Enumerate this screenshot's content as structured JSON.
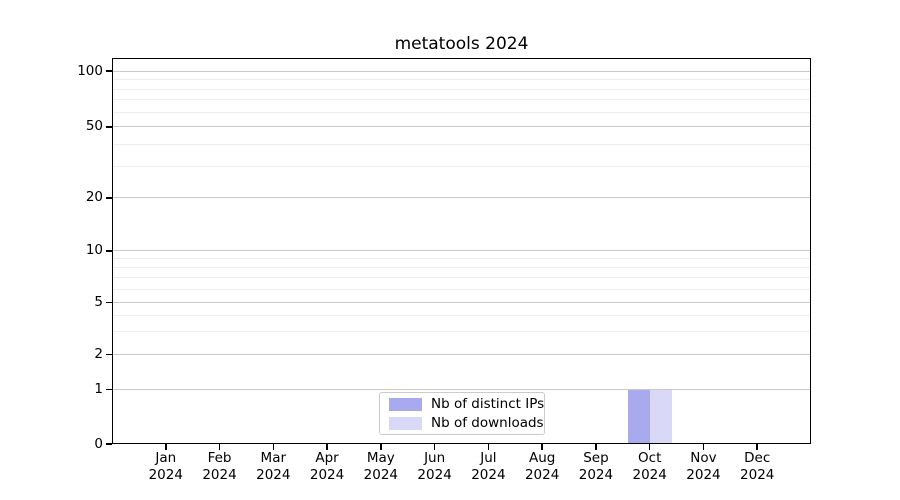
{
  "title": "metatools 2024",
  "chart_data": {
    "type": "bar",
    "title": "metatools 2024",
    "categories": [
      "Jan 2024",
      "Feb 2024",
      "Mar 2024",
      "Apr 2024",
      "May 2024",
      "Jun 2024",
      "Jul 2024",
      "Aug 2024",
      "Sep 2024",
      "Oct 2024",
      "Nov 2024",
      "Dec 2024"
    ],
    "series": [
      {
        "name": "Nb of distinct IPs",
        "color": "#a9a9ee",
        "values": [
          0,
          0,
          0,
          0,
          0,
          0,
          0,
          0,
          0,
          1,
          0,
          0
        ]
      },
      {
        "name": "Nb of downloads",
        "color": "#d9d9f7",
        "values": [
          0,
          0,
          0,
          0,
          0,
          0,
          0,
          0,
          0,
          1,
          0,
          0
        ]
      }
    ],
    "xlabel": "",
    "ylabel": "",
    "yscale": "symlog",
    "ylim": [
      0,
      120
    ],
    "y_ticks": [
      0,
      1,
      2,
      5,
      10,
      20,
      50,
      100
    ],
    "y_minor_ticks": [
      3,
      4,
      6,
      7,
      8,
      9,
      30,
      40,
      60,
      70,
      80,
      90
    ],
    "grid": "horizontal major and minor",
    "legend_position": "lower center"
  },
  "legend": {
    "items": [
      {
        "label": "Nb of distinct IPs",
        "color": "#a9a9ee"
      },
      {
        "label": "Nb of downloads",
        "color": "#d9d9f7"
      }
    ]
  },
  "colors": {
    "background": "#ffffff",
    "spine": "#000000",
    "grid_major": "#c9c9c9",
    "grid_minor": "#ededed",
    "bar_distinct_ips": "#a9a9ee",
    "bar_downloads": "#d9d9f7",
    "text": "#000000"
  }
}
